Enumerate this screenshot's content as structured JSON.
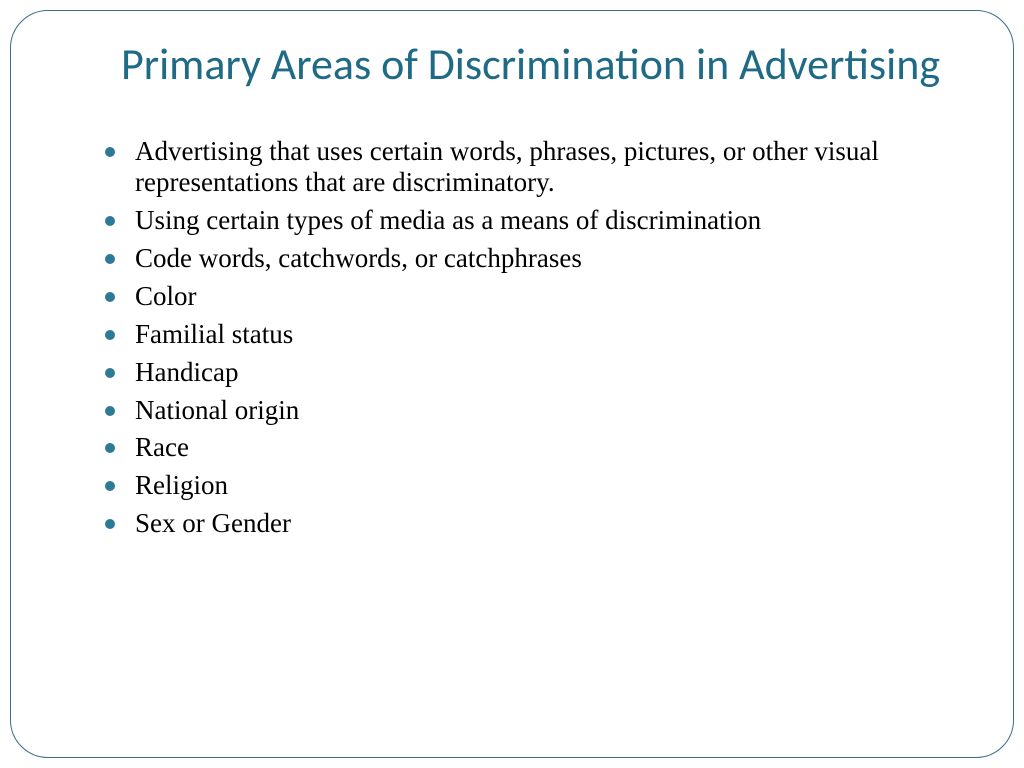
{
  "slide": {
    "title": "Primary Areas of Discrimination in Advertising",
    "title_color": "#1f6b86",
    "title_fontsize": 44,
    "bullet_color": "#2d7a96",
    "body_color": "#000000",
    "body_fontsize": 27,
    "border_color": "#3a6d83",
    "border_radius": 38,
    "background_color": "#ffffff",
    "bullets": [
      "Advertising that uses certain words, phrases, pictures, or other visual representations that are discriminatory.",
      "Using certain types of media as a means of discrimination",
      "Code words, catchwords, or catchphrases",
      "Color",
      "Familial status",
      "Handicap",
      "National origin",
      "Race",
      "Religion",
      "Sex or Gender"
    ]
  }
}
